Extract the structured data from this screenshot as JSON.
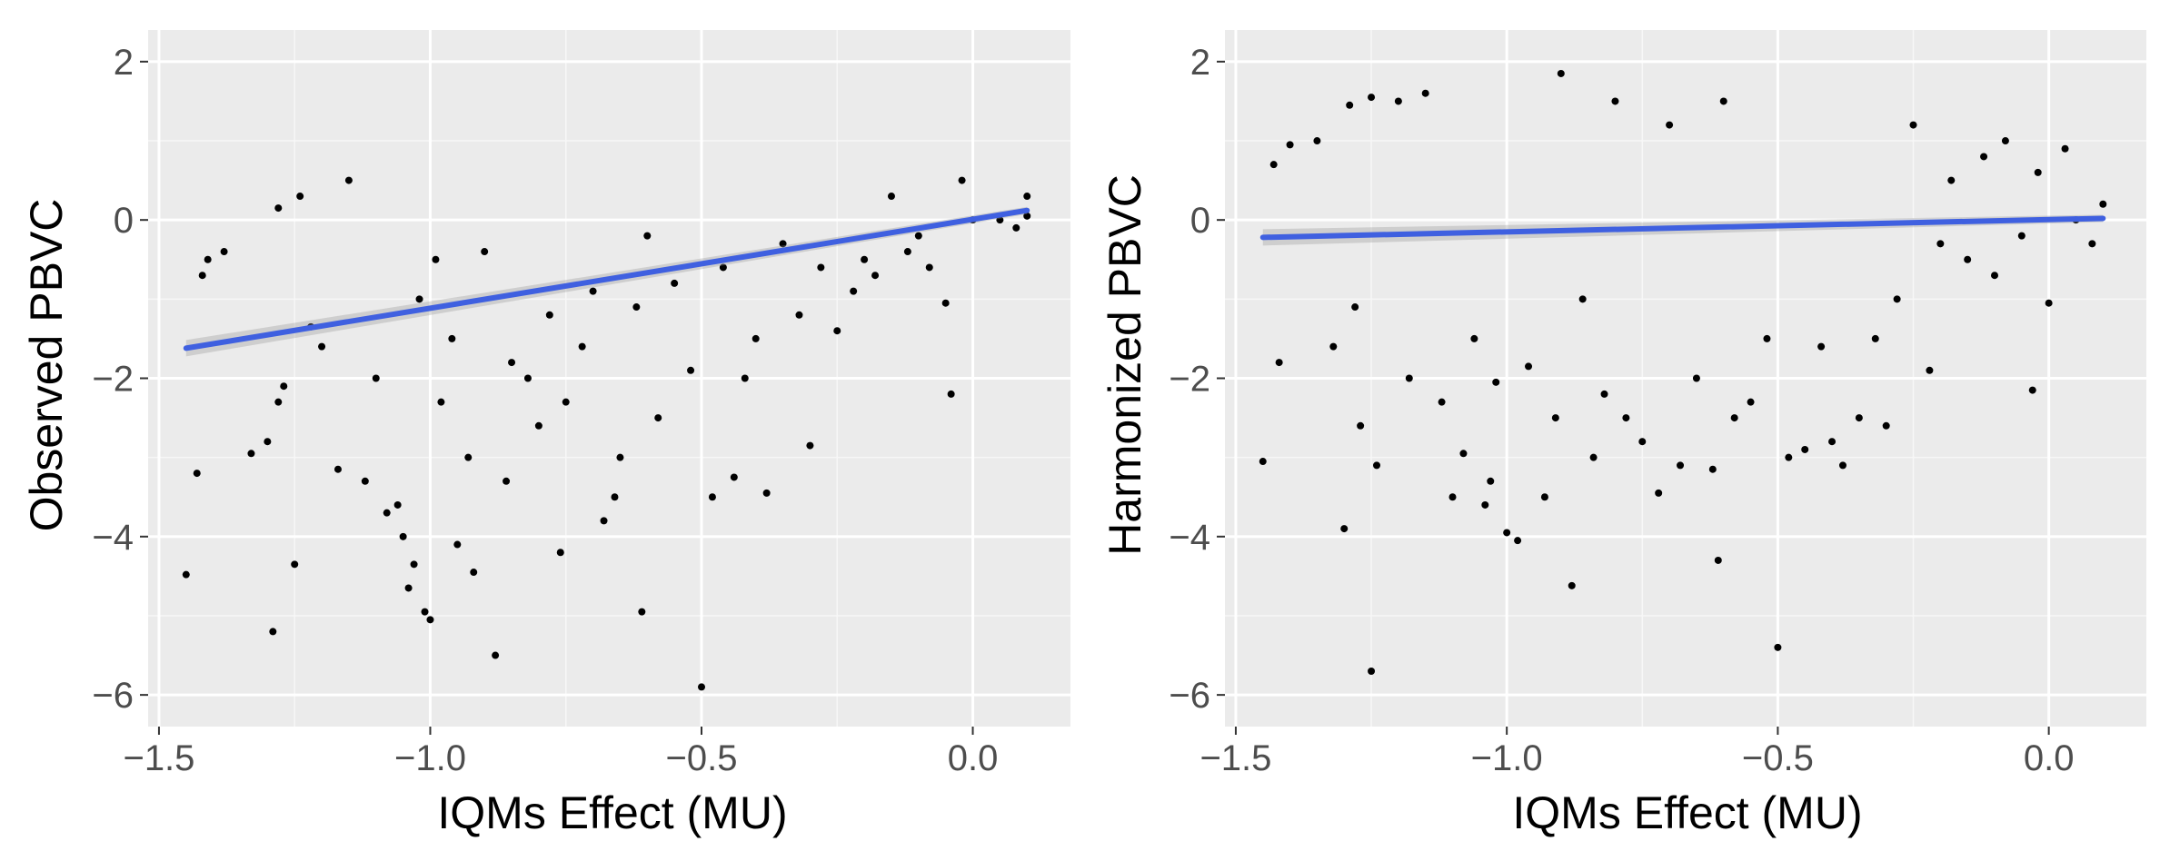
{
  "chart_data": [
    {
      "type": "scatter",
      "xlabel": "IQMs Effect (MU)",
      "ylabel": "Observed PBVC",
      "xlim": [
        -1.52,
        0.18
      ],
      "ylim": [
        -6.4,
        2.4
      ],
      "xticks": [
        -1.5,
        -1.0,
        -0.5,
        0.0
      ],
      "xtick_labels": [
        "−1.5",
        "−1.0",
        "−0.5",
        "0.0"
      ],
      "yticks": [
        2,
        0,
        -2,
        -4,
        -6
      ],
      "ytick_labels": [
        "2",
        "0",
        "−2",
        "−4",
        "−6"
      ],
      "grid": true,
      "panel_background": "#ebebeb",
      "point_color": "#000000",
      "fit_line": {
        "x": [
          -1.45,
          0.1
        ],
        "y": [
          -1.62,
          0.12
        ],
        "color": "#3f60e0"
      },
      "series": [
        {
          "x": [
            -1.45,
            -1.43,
            -1.42,
            -1.41,
            -1.38,
            -1.33,
            -1.3,
            -1.29,
            -1.28,
            -1.28,
            -1.27,
            -1.25,
            -1.24,
            -1.22,
            -1.2,
            -1.17,
            -1.15,
            -1.12,
            -1.1,
            -1.08,
            -1.06,
            -1.05,
            -1.04,
            -1.03,
            -1.02,
            -1.01,
            -1.0,
            -0.99,
            -0.98,
            -0.96,
            -0.95,
            -0.93,
            -0.92,
            -0.9,
            -0.88,
            -0.86,
            -0.85,
            -0.82,
            -0.8,
            -0.78,
            -0.76,
            -0.75,
            -0.72,
            -0.7,
            -0.68,
            -0.66,
            -0.65,
            -0.62,
            -0.61,
            -0.6,
            -0.58,
            -0.55,
            -0.52,
            -0.5,
            -0.48,
            -0.46,
            -0.44,
            -0.42,
            -0.4,
            -0.38,
            -0.35,
            -0.32,
            -0.3,
            -0.28,
            -0.25,
            -0.22,
            -0.2,
            -0.18,
            -0.15,
            -0.12,
            -0.1,
            -0.08,
            -0.05,
            -0.04,
            -0.02,
            0.0,
            0.05,
            0.08,
            0.1,
            0.1
          ],
          "y": [
            -4.48,
            -3.2,
            -0.7,
            -0.5,
            -0.4,
            -2.95,
            -2.8,
            -5.2,
            -2.3,
            0.15,
            -2.1,
            -4.35,
            0.3,
            -1.35,
            -1.6,
            -3.15,
            0.5,
            -3.3,
            -2.0,
            -3.7,
            -3.6,
            -4.0,
            -4.65,
            -4.35,
            -1.0,
            -4.95,
            -5.05,
            -0.5,
            -2.3,
            -1.5,
            -4.1,
            -3.0,
            -4.45,
            -0.4,
            -5.5,
            -3.3,
            -1.8,
            -2.0,
            -2.6,
            -1.2,
            -4.2,
            -2.3,
            -1.6,
            -0.9,
            -3.8,
            -3.5,
            -3.0,
            -1.1,
            -4.95,
            -0.2,
            -2.5,
            -0.8,
            -1.9,
            -5.9,
            -3.5,
            -0.6,
            -3.25,
            -2.0,
            -1.5,
            -3.45,
            -0.3,
            -1.2,
            -2.85,
            -0.6,
            -1.4,
            -0.9,
            -0.5,
            -0.7,
            0.3,
            -0.4,
            -0.2,
            -0.6,
            -1.05,
            -2.2,
            0.5,
            0.0,
            0.0,
            -0.1,
            0.3,
            0.05
          ]
        }
      ]
    },
    {
      "type": "scatter",
      "xlabel": "IQMs Effect (MU)",
      "ylabel": "Harmonized PBVC",
      "xlim": [
        -1.52,
        0.18
      ],
      "ylim": [
        -6.4,
        2.4
      ],
      "xticks": [
        -1.5,
        -1.0,
        -0.5,
        0.0
      ],
      "xtick_labels": [
        "−1.5",
        "−1.0",
        "−0.5",
        "0.0"
      ],
      "yticks": [
        2,
        0,
        -2,
        -4,
        -6
      ],
      "ytick_labels": [
        "2",
        "0",
        "−2",
        "−4",
        "−6"
      ],
      "grid": true,
      "panel_background": "#ebebeb",
      "point_color": "#000000",
      "fit_line": {
        "x": [
          -1.45,
          0.1
        ],
        "y": [
          -0.22,
          0.02
        ],
        "color": "#3f60e0"
      },
      "series": [
        {
          "x": [
            -1.45,
            -1.43,
            -1.42,
            -1.4,
            -1.35,
            -1.32,
            -1.3,
            -1.29,
            -1.28,
            -1.27,
            -1.25,
            -1.25,
            -1.24,
            -1.2,
            -1.18,
            -1.15,
            -1.12,
            -1.1,
            -1.08,
            -1.06,
            -1.04,
            -1.03,
            -1.02,
            -1.0,
            -0.98,
            -0.96,
            -0.93,
            -0.91,
            -0.9,
            -0.88,
            -0.86,
            -0.84,
            -0.82,
            -0.8,
            -0.78,
            -0.75,
            -0.72,
            -0.7,
            -0.68,
            -0.65,
            -0.62,
            -0.61,
            -0.6,
            -0.58,
            -0.55,
            -0.52,
            -0.5,
            -0.48,
            -0.45,
            -0.42,
            -0.4,
            -0.38,
            -0.35,
            -0.32,
            -0.3,
            -0.28,
            -0.25,
            -0.22,
            -0.2,
            -0.18,
            -0.15,
            -0.12,
            -0.1,
            -0.08,
            -0.05,
            -0.03,
            -0.02,
            0.0,
            0.03,
            0.05,
            0.08,
            0.1
          ],
          "y": [
            -3.05,
            0.7,
            -1.8,
            0.95,
            1.0,
            -1.6,
            -3.9,
            1.45,
            -1.1,
            -2.6,
            1.55,
            -5.7,
            -3.1,
            1.5,
            -2.0,
            1.6,
            -2.3,
            -3.5,
            -2.95,
            -1.5,
            -3.6,
            -3.3,
            -2.05,
            -3.95,
            -4.05,
            -1.85,
            -3.5,
            -2.5,
            1.85,
            -4.62,
            -1.0,
            -3.0,
            -2.2,
            1.5,
            -2.5,
            -2.8,
            -3.45,
            1.2,
            -3.1,
            -2.0,
            -3.15,
            -4.3,
            1.5,
            -2.5,
            -2.3,
            -1.5,
            -5.4,
            -3.0,
            -2.9,
            -1.6,
            -2.8,
            -3.1,
            -2.5,
            -1.5,
            -2.6,
            -1.0,
            1.2,
            -1.9,
            -0.3,
            0.5,
            -0.5,
            0.8,
            -0.7,
            1.0,
            -0.2,
            -2.15,
            0.6,
            -1.05,
            0.9,
            0.0,
            -0.3,
            0.2
          ]
        }
      ]
    }
  ]
}
